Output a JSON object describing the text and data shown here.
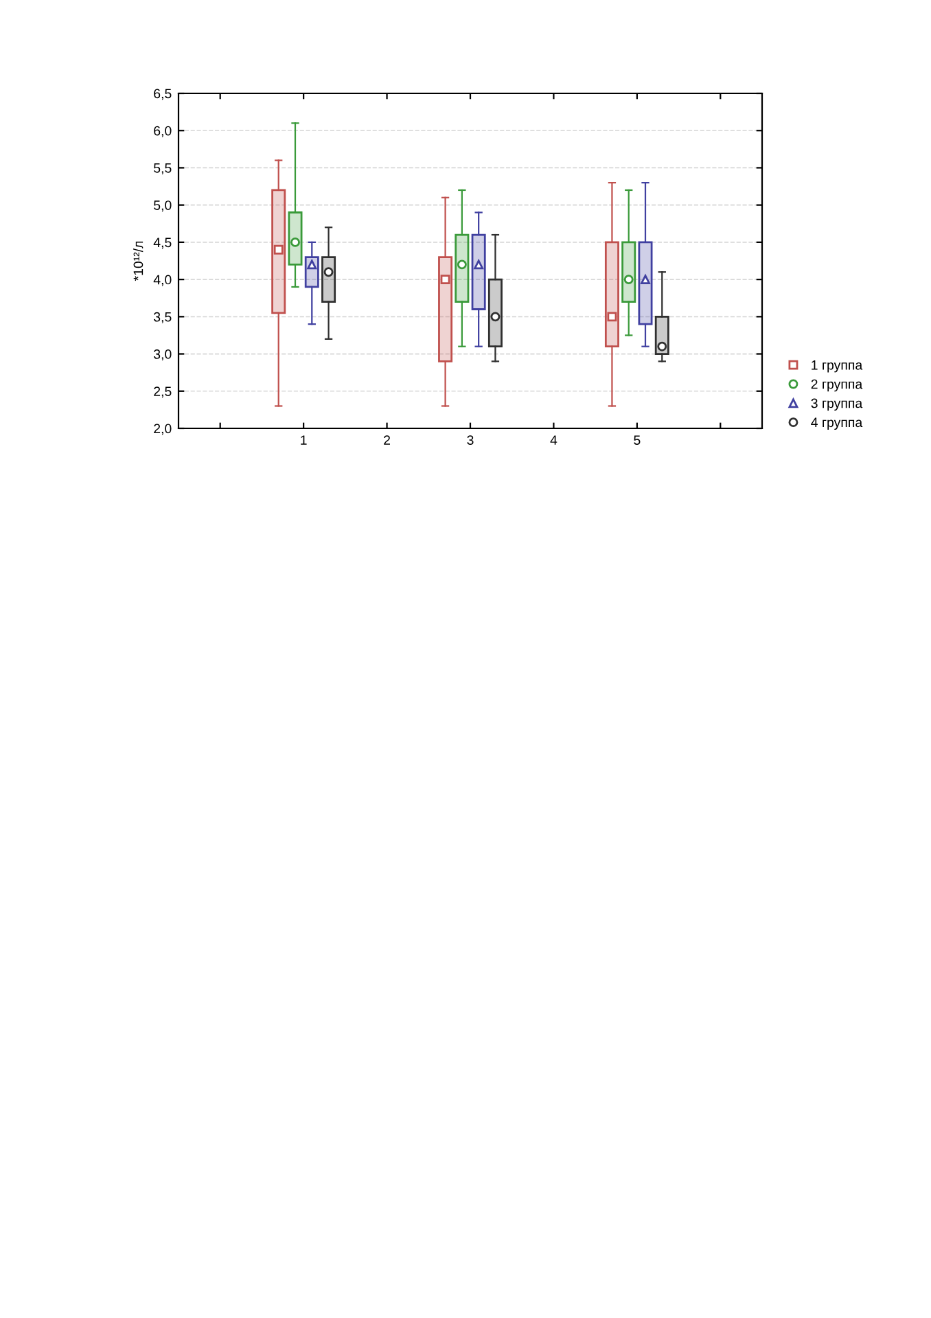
{
  "chart_data": {
    "type": "box",
    "ylabel": "*10¹²/л",
    "categories": [
      null,
      "1",
      "2",
      "3",
      "4",
      "5",
      null
    ],
    "ylim": [
      2.0,
      6.5
    ],
    "yticks": [
      {
        "value": 2.0,
        "label": "2,0"
      },
      {
        "value": 2.5,
        "label": "2,5"
      },
      {
        "value": 3.0,
        "label": "3,0"
      },
      {
        "value": 3.5,
        "label": "3,5"
      },
      {
        "value": 4.0,
        "label": "4,0"
      },
      {
        "value": 4.5,
        "label": "4,5"
      },
      {
        "value": 5.0,
        "label": "5,0"
      },
      {
        "value": 5.5,
        "label": "5,5"
      },
      {
        "value": 6.0,
        "label": "6,0"
      },
      {
        "value": 6.5,
        "label": "6,5"
      }
    ],
    "grid": "y",
    "legend": "bottom right",
    "series": [
      {
        "name": "1 группа",
        "color": "#c0504d",
        "marker": "square",
        "boxes": [
          null,
          {
            "low": 2.3,
            "q1": 3.55,
            "median": 4.4,
            "q3": 5.2,
            "high": 5.6
          },
          null,
          {
            "low": 2.3,
            "q1": 2.9,
            "median": 4.0,
            "q3": 4.3,
            "high": 5.1
          },
          null,
          {
            "low": 2.3,
            "q1": 3.1,
            "median": 3.5,
            "q3": 4.5,
            "high": 5.3
          },
          null
        ]
      },
      {
        "name": "2 группа",
        "color": "#3a9a3a",
        "marker": "circle",
        "boxes": [
          null,
          {
            "low": 3.9,
            "q1": 4.2,
            "median": 4.5,
            "q3": 4.9,
            "high": 6.1
          },
          null,
          {
            "low": 3.1,
            "q1": 3.7,
            "median": 4.2,
            "q3": 4.6,
            "high": 5.2
          },
          null,
          {
            "low": 3.25,
            "q1": 3.7,
            "median": 4.0,
            "q3": 4.5,
            "high": 5.2
          },
          null
        ]
      },
      {
        "name": "3 группа",
        "color": "#4040a0",
        "marker": "triangle",
        "boxes": [
          null,
          {
            "low": 3.4,
            "q1": 3.9,
            "median": 4.2,
            "q3": 4.3,
            "high": 4.5
          },
          null,
          {
            "low": 3.1,
            "q1": 3.6,
            "median": 4.2,
            "q3": 4.6,
            "high": 4.9
          },
          null,
          {
            "low": 3.1,
            "q1": 3.4,
            "median": 4.0,
            "q3": 4.5,
            "high": 5.3
          },
          null
        ]
      },
      {
        "name": "4 группа",
        "color": "#303030",
        "marker": "circle",
        "boxes": [
          null,
          {
            "low": 3.2,
            "q1": 3.7,
            "median": 4.1,
            "q3": 4.3,
            "high": 4.7
          },
          null,
          {
            "low": 2.9,
            "q1": 3.1,
            "median": 3.5,
            "q3": 4.0,
            "high": 4.6
          },
          null,
          {
            "low": 2.9,
            "q1": 3.0,
            "median": 3.1,
            "q3": 3.5,
            "high": 4.1
          },
          null
        ]
      }
    ]
  }
}
